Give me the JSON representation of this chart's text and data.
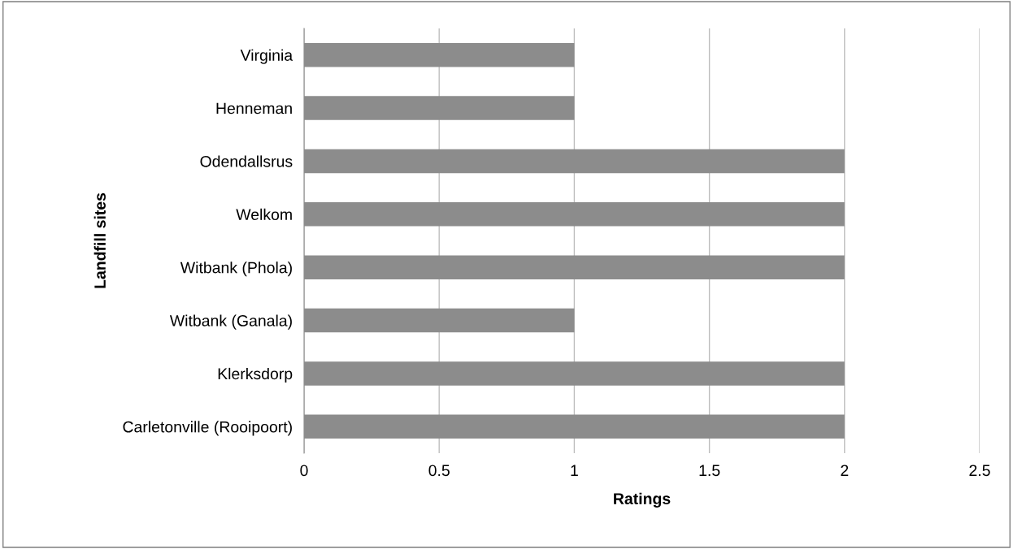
{
  "chart_data": {
    "type": "bar",
    "orientation": "horizontal",
    "xlabel": "Ratings",
    "ylabel": "Landfill sites",
    "categories": [
      "Virginia",
      "Henneman",
      "Odendallsrus",
      "Welkom",
      "Witbank (Phola)",
      "Witbank (Ganala)",
      "Klerksdorp",
      "Carletonville (Rooipoort)"
    ],
    "values": [
      1,
      1,
      2,
      2,
      2,
      1,
      2,
      2
    ],
    "color": "#8c8c8c",
    "xlim": [
      0,
      2.5
    ],
    "xticks": [
      0,
      0.5,
      1,
      1.5,
      2,
      2.5
    ],
    "grid": "x",
    "legend": false
  }
}
